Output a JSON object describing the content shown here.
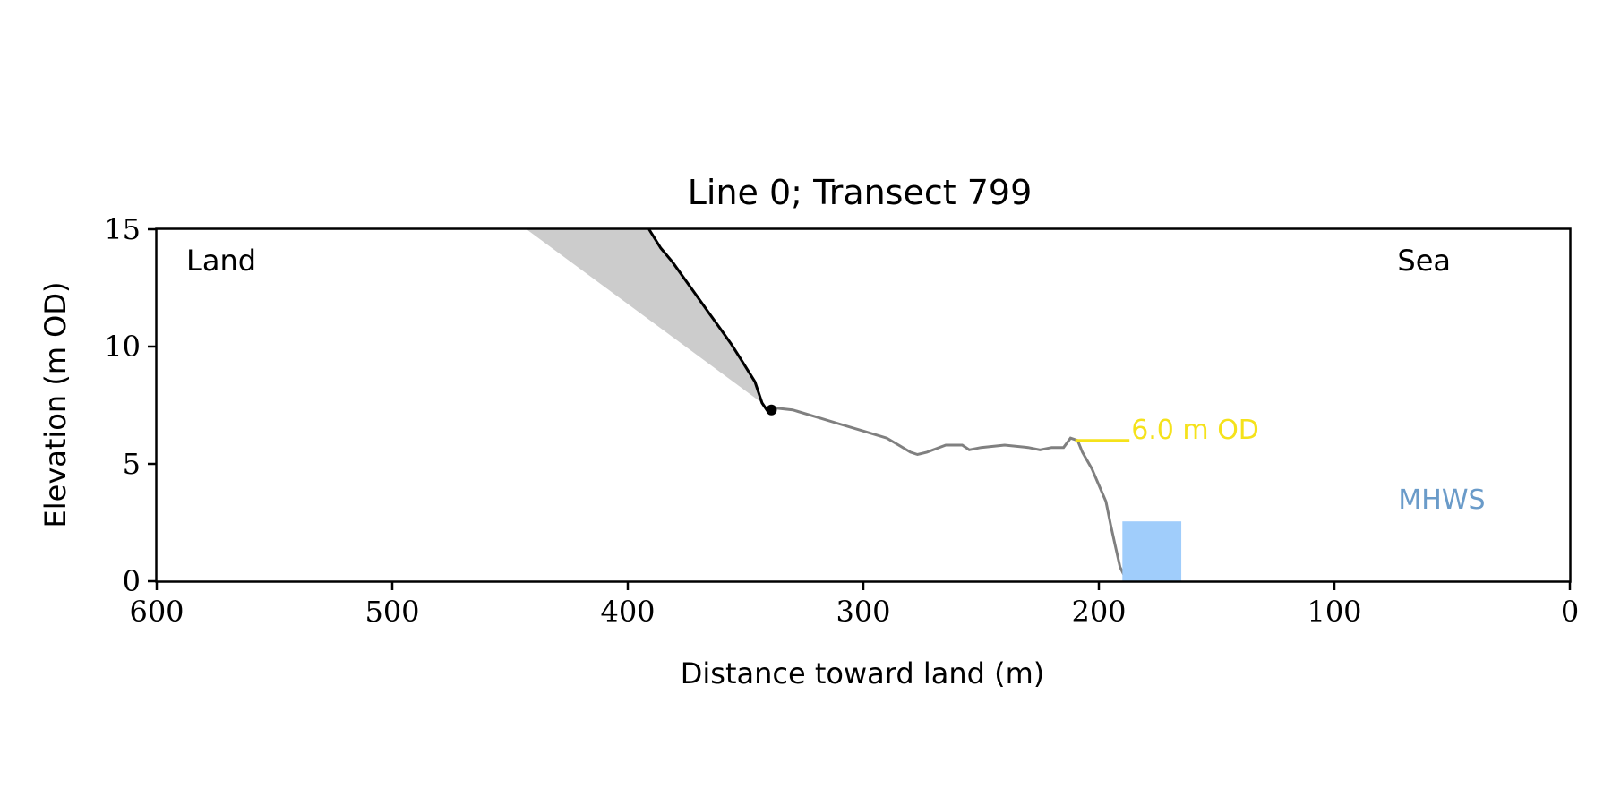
{
  "chart_data": {
    "type": "line",
    "title": "Line 0; Transect 799",
    "xlabel": "Distance toward land (m)",
    "ylabel": "Elevation (m OD)",
    "xlim": [
      600,
      0
    ],
    "ylim": [
      0,
      15
    ],
    "x_ticks": [
      600,
      500,
      400,
      300,
      200,
      100,
      0
    ],
    "y_ticks": [
      0,
      5,
      10,
      15
    ],
    "grid": false,
    "corner_labels": {
      "left": "Land",
      "right": "Sea"
    },
    "colors": {
      "cliff": "#000000",
      "profile": "#808080",
      "shade": "#cccccc",
      "threshold": "#f5e21b",
      "mhws_rect": "#a0cdfb",
      "mhws_text": "#6a9bc9"
    },
    "cliff_line": {
      "x": [
        391,
        386,
        381,
        376,
        371,
        366,
        361,
        356,
        351,
        346,
        343,
        341,
        339
      ],
      "y": [
        15.0,
        14.2,
        13.6,
        12.9,
        12.2,
        11.5,
        10.8,
        10.1,
        9.3,
        8.5,
        7.6,
        7.3,
        7.3
      ]
    },
    "cliff_toe": {
      "x": 339,
      "y": 7.3
    },
    "shaded_wedge": {
      "x": [
        443,
        391,
        386,
        381,
        376,
        371,
        366,
        361,
        356,
        351,
        346,
        343,
        339
      ],
      "y": [
        15.0,
        15.0,
        14.2,
        13.6,
        12.9,
        12.2,
        11.5,
        10.8,
        10.1,
        9.3,
        8.5,
        7.6,
        7.3
      ]
    },
    "beach_profile": {
      "x": [
        339,
        330,
        320,
        310,
        300,
        290,
        285,
        280,
        277,
        273,
        265,
        258,
        255,
        250,
        240,
        230,
        225,
        220,
        215,
        212,
        209,
        207,
        203,
        200,
        197,
        195,
        193,
        191,
        189,
        188
      ],
      "y": [
        7.4,
        7.3,
        7.0,
        6.7,
        6.4,
        6.1,
        5.8,
        5.5,
        5.4,
        5.5,
        5.8,
        5.8,
        5.6,
        5.7,
        5.8,
        5.7,
        5.6,
        5.7,
        5.7,
        6.1,
        6.0,
        5.5,
        4.8,
        4.1,
        3.4,
        2.4,
        1.5,
        0.6,
        0.2,
        0.0
      ]
    },
    "threshold_line": {
      "x": [
        210,
        187
      ],
      "y": 6.0,
      "label": "6.0 m OD"
    },
    "mhws_bar": {
      "x": [
        190,
        165
      ],
      "y": [
        0,
        2.55
      ],
      "label": "MHWS"
    }
  }
}
